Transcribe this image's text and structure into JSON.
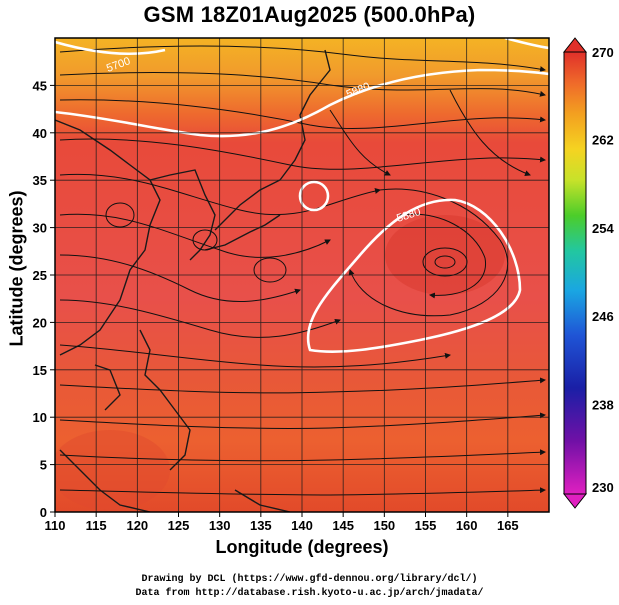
{
  "title": "GSM 18Z01Aug2025 (500.0hPa)",
  "xlabel": "Longitude (degrees)",
  "ylabel": "Latitude  (degrees)",
  "credits": {
    "line1": "Drawing by DCL (https://www.gfd-dennou.org/library/dcl/)",
    "line2": "Data from http://database.rish.kyoto-u.ac.jp/arch/jmadata/"
  },
  "map": {
    "lon_range": [
      110,
      170
    ],
    "lat_range": [
      0,
      50
    ],
    "x_ticks": [
      "110",
      "115",
      "120",
      "125",
      "130",
      "135",
      "140",
      "145",
      "150",
      "155",
      "160",
      "165"
    ],
    "y_ticks": [
      "0",
      "5",
      "10",
      "15",
      "20",
      "25",
      "30",
      "35",
      "40",
      "45"
    ],
    "grid": true,
    "contour_labels": [
      "5700",
      "5880",
      "5880"
    ]
  },
  "colorbar": {
    "tick_labels": [
      "270",
      "262",
      "254",
      "246",
      "238",
      "230"
    ],
    "colors": [
      "#e0302a",
      "#ef6a2a",
      "#f3a020",
      "#f5d321",
      "#c7e22a",
      "#4ccd2a",
      "#22c7a0",
      "#1aa6e2",
      "#1f55d6",
      "#1a1fa6",
      "#7010a6",
      "#e020c0"
    ]
  }
}
